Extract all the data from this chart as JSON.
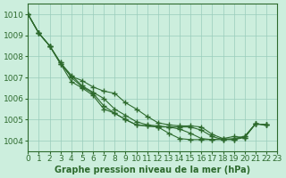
{
  "xlabel": "Graphe pression niveau de la mer (hPa)",
  "background_color": "#cceedd",
  "grid_color": "#99ccbb",
  "line_color": "#2d6a2d",
  "xlim": [
    0,
    23
  ],
  "ylim": [
    1003.5,
    1010.5
  ],
  "yticks": [
    1004,
    1005,
    1006,
    1007,
    1008,
    1009,
    1010
  ],
  "xticks": [
    0,
    1,
    2,
    3,
    4,
    5,
    6,
    7,
    8,
    9,
    10,
    11,
    12,
    13,
    14,
    15,
    16,
    17,
    18,
    19,
    20,
    21,
    22,
    23
  ],
  "series_x": [
    [
      0,
      1,
      2,
      3,
      4,
      5,
      6,
      7,
      8,
      9,
      10,
      11,
      12,
      13,
      14,
      15,
      16,
      17,
      18,
      19,
      20,
      21,
      22
    ],
    [
      0,
      1,
      2,
      3,
      4,
      5,
      6,
      7,
      8,
      9,
      10,
      11,
      12,
      13,
      14,
      15,
      16,
      17,
      18,
      19,
      20,
      21,
      22
    ],
    [
      0,
      1,
      2,
      3,
      4,
      5,
      6,
      7,
      8,
      9,
      10,
      11,
      12,
      13,
      14,
      15,
      16,
      17,
      18,
      19,
      20,
      21,
      22
    ],
    [
      0,
      1,
      2,
      3,
      4,
      5,
      6,
      7,
      8,
      9,
      10,
      11,
      12,
      13,
      14,
      15,
      16,
      17,
      18,
      19,
      20,
      21,
      22
    ]
  ],
  "series_y": [
    [
      1010.0,
      1009.1,
      1008.5,
      1007.65,
      1007.05,
      1006.85,
      1006.55,
      1006.35,
      1006.25,
      1005.8,
      1005.5,
      1005.15,
      1004.85,
      1004.75,
      1004.7,
      1004.7,
      1004.65,
      1004.3,
      1004.1,
      1004.05,
      1004.15,
      1004.8,
      1004.75
    ],
    [
      1010.0,
      1009.1,
      1008.5,
      1007.7,
      1007.1,
      1006.6,
      1006.3,
      1006.0,
      1005.5,
      1005.2,
      1004.9,
      1004.75,
      1004.7,
      1004.65,
      1004.65,
      1004.65,
      1004.5,
      1004.2,
      1004.05,
      1004.05,
      1004.2,
      1004.8,
      1004.75
    ],
    [
      1010.0,
      1009.1,
      1008.5,
      1007.7,
      1007.0,
      1006.55,
      1006.25,
      1005.65,
      1005.3,
      1005.0,
      1004.75,
      1004.7,
      1004.65,
      1004.65,
      1004.55,
      1004.35,
      1004.1,
      1004.05,
      1004.05,
      1004.1,
      1004.2,
      1004.8,
      1004.75
    ],
    [
      1010.0,
      1009.1,
      1008.5,
      1007.65,
      1006.8,
      1006.5,
      1006.15,
      1005.5,
      1005.3,
      1005.0,
      1004.75,
      1004.7,
      1004.65,
      1004.35,
      1004.1,
      1004.05,
      1004.05,
      1004.05,
      1004.1,
      1004.2,
      1004.15,
      1004.8,
      1004.75
    ]
  ]
}
